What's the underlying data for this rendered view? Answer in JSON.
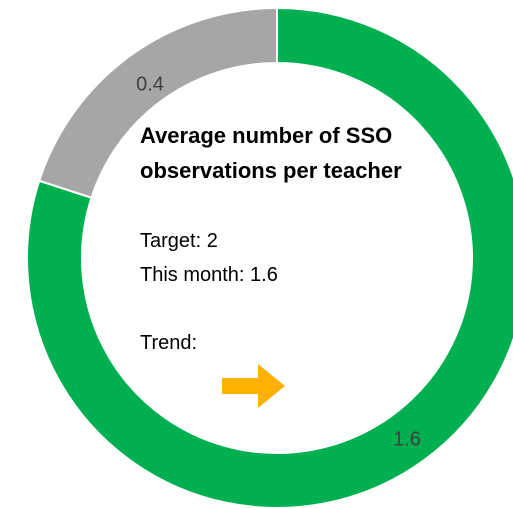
{
  "chart_data": {
    "type": "donut",
    "values": [
      1.6,
      0.4
    ],
    "colors": [
      "#00b050",
      "#a6a6a6"
    ],
    "title": "Average number of SSO observations per teacher",
    "annotations": [
      "Target: 2",
      "This month: 1.6",
      "Trend:"
    ]
  }
}
